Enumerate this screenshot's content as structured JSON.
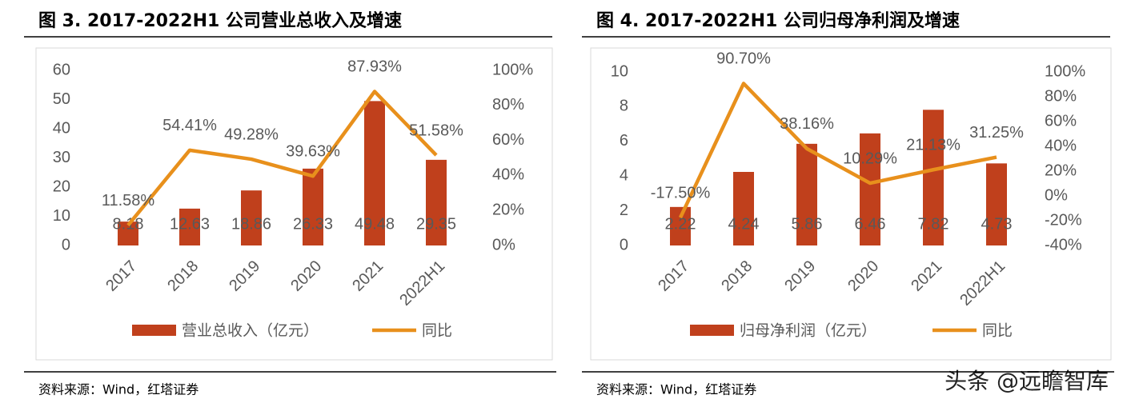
{
  "chart_data": [
    {
      "type": "combo",
      "title": "图 3. 2017-2022H1 公司营业总收入及增速",
      "categories": [
        "2017",
        "2018",
        "2019",
        "2020",
        "2021",
        "2022H1"
      ],
      "series": [
        {
          "name": "营业总收入（亿元）",
          "type": "bar",
          "color": "#c0401c",
          "values": [
            8.18,
            12.63,
            18.86,
            26.33,
            49.48,
            29.35
          ]
        },
        {
          "name": "同比",
          "type": "line",
          "axis": "y2",
          "color": "#e8901c",
          "values": [
            11.58,
            54.41,
            49.28,
            39.63,
            87.93,
            51.58
          ],
          "value_labels": [
            "11.58%",
            "54.41%",
            "49.28%",
            "39.63%",
            "87.93%",
            "51.58%"
          ]
        }
      ],
      "ylim": [
        0,
        60
      ],
      "yticks": [
        0,
        10,
        20,
        30,
        40,
        50,
        60
      ],
      "y2lim": [
        0,
        100
      ],
      "y2ticks": [
        {
          "value": 0,
          "label": "0%"
        },
        {
          "value": 20,
          "label": "20%"
        },
        {
          "value": 40,
          "label": "40%"
        },
        {
          "value": 60,
          "label": "60%"
        },
        {
          "value": 80,
          "label": "80%"
        },
        {
          "value": 100,
          "label": "100%"
        }
      ],
      "legend": "bottom",
      "source": "资料来源：Wind，红塔证券"
    },
    {
      "type": "combo",
      "title": "图 4. 2017-2022H1 公司归母净利润及增速",
      "categories": [
        "2017",
        "2018",
        "2019",
        "2020",
        "2021",
        "2022H1"
      ],
      "series": [
        {
          "name": "归母净利润（亿元）",
          "type": "bar",
          "color": "#c0401c",
          "values": [
            2.22,
            4.24,
            5.86,
            6.46,
            7.82,
            4.73
          ]
        },
        {
          "name": "同比",
          "type": "line",
          "axis": "y2",
          "color": "#e8901c",
          "values": [
            -17.5,
            90.7,
            38.16,
            10.29,
            21.13,
            31.25
          ],
          "value_labels": [
            "-17.50%",
            "90.70%",
            "38.16%",
            "10.29%",
            "21.13%",
            "31.25%"
          ]
        }
      ],
      "ylim": [
        0,
        10
      ],
      "yticks": [
        0,
        2,
        4,
        6,
        8,
        10
      ],
      "y2lim": [
        -40,
        100
      ],
      "y2ticks": [
        {
          "value": -40,
          "label": "-40%"
        },
        {
          "value": -20,
          "label": "-20%"
        },
        {
          "value": 0,
          "label": "0%"
        },
        {
          "value": 20,
          "label": "20%"
        },
        {
          "value": 40,
          "label": "40%"
        },
        {
          "value": 60,
          "label": "60%"
        },
        {
          "value": 80,
          "label": "80%"
        },
        {
          "value": 100,
          "label": "100%"
        }
      ],
      "legend": "bottom",
      "source": "资料来源：Wind，红塔证券"
    }
  ],
  "watermark": "头条 @远瞻智库"
}
